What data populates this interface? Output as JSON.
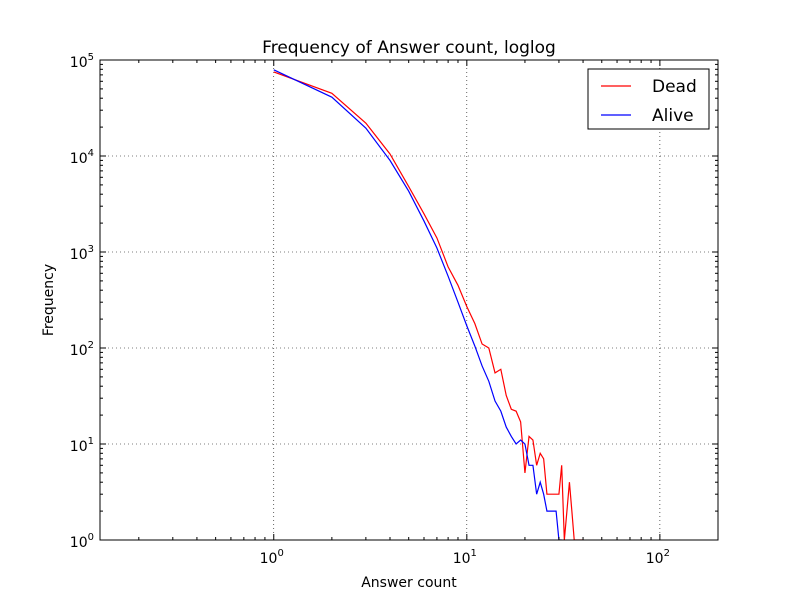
{
  "chart_data": {
    "type": "line",
    "title": "Frequency of Answer count, loglog",
    "xlabel": "Answer count",
    "ylabel": "Frequency",
    "xscale": "log",
    "yscale": "log",
    "xlim": [
      0.1259,
      200
    ],
    "ylim": [
      1,
      100000
    ],
    "x_ticks": [
      {
        "base": "10",
        "exp": "0",
        "value": 1
      },
      {
        "base": "10",
        "exp": "1",
        "value": 10
      },
      {
        "base": "10",
        "exp": "2",
        "value": 100
      }
    ],
    "y_ticks": [
      {
        "base": "10",
        "exp": "0",
        "value": 1
      },
      {
        "base": "10",
        "exp": "1",
        "value": 10
      },
      {
        "base": "10",
        "exp": "2",
        "value": 100
      },
      {
        "base": "10",
        "exp": "3",
        "value": 1000
      },
      {
        "base": "10",
        "exp": "4",
        "value": 10000
      },
      {
        "base": "10",
        "exp": "5",
        "value": 100000
      }
    ],
    "grid": true,
    "legend_position": "top-right",
    "series": [
      {
        "name": "Dead",
        "color": "#ff0000",
        "x": [
          1,
          2,
          3,
          4,
          5,
          6,
          7,
          8,
          9,
          10,
          11,
          12,
          13,
          14,
          15,
          16,
          17,
          18,
          19,
          20,
          21,
          22,
          23,
          24,
          25,
          26,
          27,
          28,
          29,
          30,
          31,
          32,
          33,
          34,
          35,
          36,
          37,
          38,
          39,
          40
        ],
        "y": [
          75000,
          45000,
          22000,
          10500,
          4800,
          2500,
          1400,
          700,
          450,
          270,
          180,
          110,
          100,
          55,
          60,
          32,
          23,
          22,
          17,
          5,
          12,
          11,
          6,
          8,
          7,
          3,
          3,
          3,
          3,
          3,
          6,
          1,
          2,
          4,
          2,
          1,
          1,
          1,
          1,
          1
        ]
      },
      {
        "name": "Alive",
        "color": "#0000ff",
        "x": [
          1,
          2,
          3,
          4,
          5,
          6,
          7,
          8,
          9,
          10,
          11,
          12,
          13,
          14,
          15,
          16,
          17,
          18,
          19,
          20,
          21,
          22,
          23,
          24,
          25,
          26,
          27,
          28,
          29,
          30,
          31
        ],
        "y": [
          79000,
          41000,
          19500,
          9000,
          4300,
          2100,
          1100,
          560,
          300,
          170,
          105,
          65,
          45,
          28,
          22,
          15,
          12,
          10,
          11,
          10,
          6,
          6,
          3,
          4,
          3,
          2,
          2,
          2,
          2,
          1,
          1
        ]
      }
    ]
  }
}
